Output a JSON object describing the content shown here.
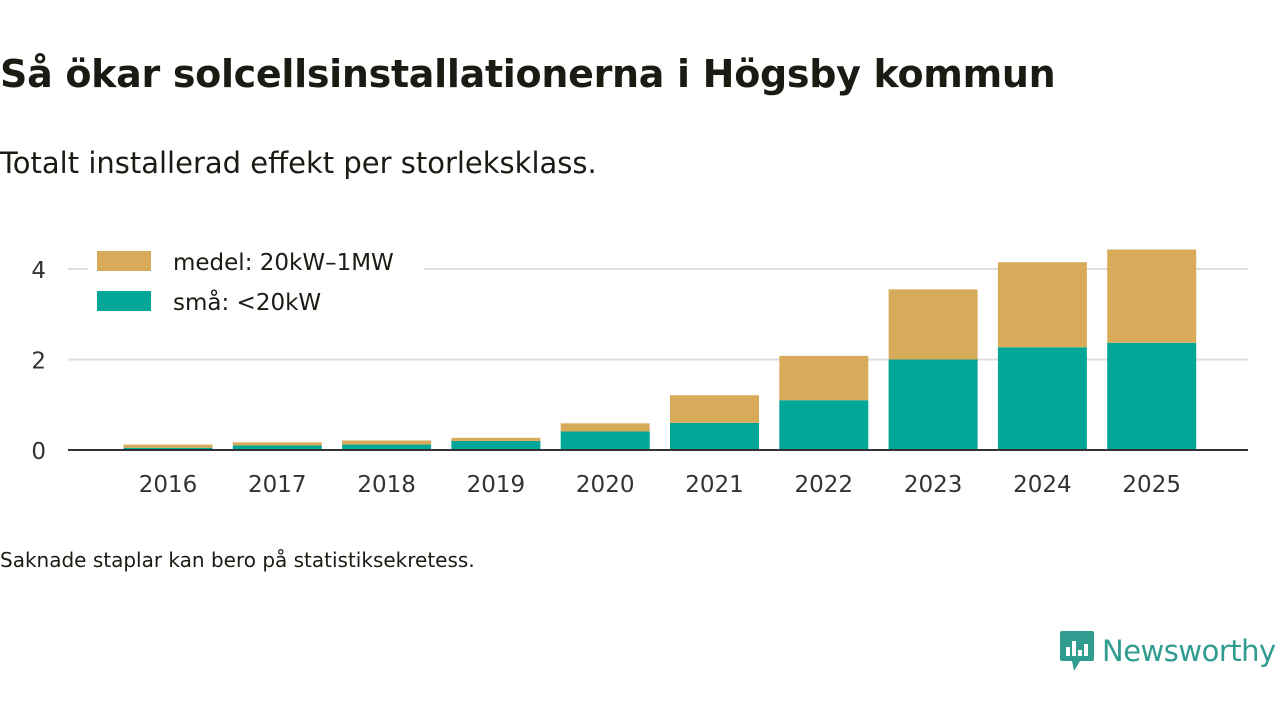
{
  "header": {
    "title": "Så ökar solcellsinstallationerna i Högsby kommun",
    "subtitle": "Totalt installerad effekt per storleksklass."
  },
  "footnote": "Saknade staplar kan bero på statistiksekretess.",
  "brand": {
    "name": "Newsworthy",
    "icon": "newsworthy-logo-icon",
    "color": "#2f9c8f"
  },
  "chart_data": {
    "type": "bar",
    "stacked": true,
    "categories": [
      "2016",
      "2017",
      "2018",
      "2019",
      "2020",
      "2021",
      "2022",
      "2023",
      "2024",
      "2025"
    ],
    "series": [
      {
        "name": "små: <20kW",
        "color": "#00a698",
        "values": [
          0.05,
          0.1,
          0.12,
          0.2,
          0.41,
          0.6,
          1.1,
          2.0,
          2.27,
          2.37
        ]
      },
      {
        "name": "medel: 20kW–1MW",
        "color": "#d8ab5a",
        "values": [
          0.07,
          0.07,
          0.09,
          0.07,
          0.18,
          0.61,
          0.98,
          1.55,
          1.88,
          2.06
        ]
      }
    ],
    "legend_order": [
      "medel: 20kW–1MW",
      "små: <20kW"
    ],
    "legend_position": "top-left",
    "ylim": [
      0,
      4.4
    ],
    "yticks": [
      0,
      2,
      4
    ],
    "ytick_labels": [
      "0",
      "2",
      "4"
    ],
    "xlabel": "",
    "ylabel": "",
    "grid": true
  }
}
